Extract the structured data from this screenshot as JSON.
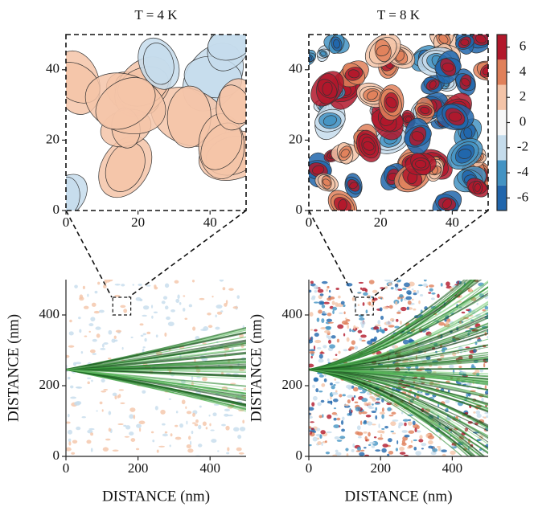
{
  "chart_data": [
    {
      "type": "contour",
      "title": "T = 4 K",
      "xlim": [
        0,
        50
      ],
      "ylim": [
        0,
        50
      ],
      "xticks": [
        0,
        20,
        40
      ],
      "yticks": [
        0,
        20,
        40
      ]
    },
    {
      "type": "contour",
      "title": "T = 8 K",
      "xlim": [
        0,
        50
      ],
      "ylim": [
        0,
        50
      ],
      "xticks": [
        0,
        20,
        40
      ],
      "yticks": [
        0,
        20,
        40
      ],
      "colorbar": {
        "lim": [
          -7,
          7
        ],
        "ticks": [
          6,
          4,
          2,
          0,
          -2,
          -4,
          -6
        ],
        "colors": [
          "#2166ac",
          "#4393c3",
          "#c5dcec",
          "#f7f7f7",
          "#f4c4a8",
          "#e0805a",
          "#b2182b"
        ]
      }
    },
    {
      "type": "map",
      "xlabel": "DISTANCE (nm)",
      "ylabel": "DISTANCE (nm)",
      "xlim": [
        0,
        500
      ],
      "ylim": [
        0,
        500
      ],
      "xticks": [
        0,
        200,
        400
      ],
      "yticks": [
        0,
        200,
        400
      ]
    },
    {
      "type": "map",
      "xlabel": "DISTANCE (nm)",
      "ylabel": "DISTANCE (nm)",
      "xlim": [
        0,
        500
      ],
      "ylim": [
        0,
        500
      ],
      "xticks": [
        0,
        200,
        400
      ],
      "yticks": [
        0,
        200,
        400
      ]
    }
  ]
}
